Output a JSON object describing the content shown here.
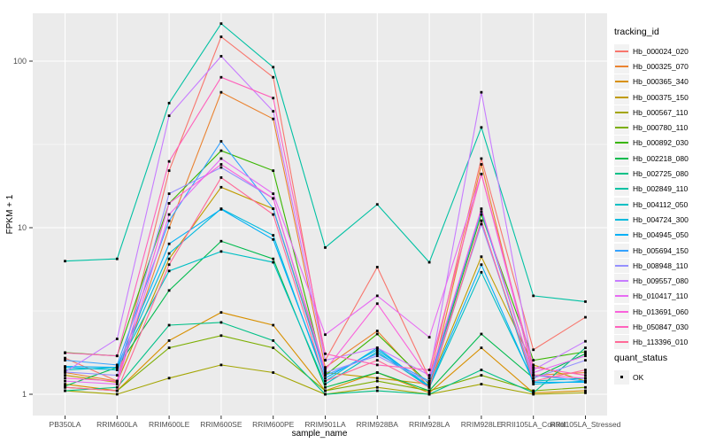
{
  "ui": {
    "background_color": "#ffffff",
    "panel_color": "#EBEBEB",
    "gridline_color": "#ffffff",
    "axis_text_color": "#4D4D4D",
    "point_color": "#000000"
  },
  "chart_data": {
    "type": "line",
    "title": "",
    "xlabel": "sample_name",
    "ylabel": "FPKM + 1",
    "y_scale": "log10",
    "ylim": [
      0.85,
      200
    ],
    "y_ticks": [
      1,
      10,
      100
    ],
    "y_tick_labels": [
      "1",
      "10",
      "100"
    ],
    "y_minor_ticks": [
      3.162,
      31.62
    ],
    "grid": "on",
    "legend_position": "right",
    "legend_title": "tracking_id",
    "point_legend": {
      "title": "quant_status",
      "label": "OK"
    },
    "categories": [
      "PB350LA",
      "RRIM600LA",
      "RRIM600LE",
      "RRIM600SE",
      "RRIM600PE",
      "RRIM901LA",
      "RRIM928BA",
      "RRIM928LA",
      "RRIM928LE",
      "RRII105LA_Control",
      "RRII105LA_Stressed"
    ],
    "series": [
      {
        "name": "Hb_000024_020",
        "color": "#F8766D",
        "values": [
          1.65,
          1.2,
          22,
          140,
          80,
          1.6,
          5.8,
          1.25,
          26,
          1.85,
          2.9
        ]
      },
      {
        "name": "Hb_000325_070",
        "color": "#EA8331",
        "values": [
          1.35,
          1.2,
          10,
          65,
          45,
          1.45,
          2.4,
          1.1,
          24,
          1.3,
          1.35
        ]
      },
      {
        "name": "Hb_000365_340",
        "color": "#D89000",
        "values": [
          1.15,
          1.05,
          2.1,
          3.1,
          2.6,
          1.05,
          1.35,
          1.02,
          1.9,
          1.02,
          1.05
        ]
      },
      {
        "name": "Hb_000375_150",
        "color": "#C09B00",
        "values": [
          1.3,
          1.18,
          6.5,
          17.5,
          13,
          1.35,
          1.25,
          1.15,
          6.7,
          1.5,
          1.2
        ]
      },
      {
        "name": "Hb_000567_110",
        "color": "#A3A500",
        "values": [
          1.05,
          1.0,
          1.25,
          1.5,
          1.35,
          1.0,
          1.1,
          1.0,
          1.15,
          1.0,
          1.02
        ]
      },
      {
        "name": "Hb_000780_110",
        "color": "#7CAE00",
        "values": [
          1.1,
          1.05,
          1.9,
          2.25,
          1.9,
          1.05,
          1.2,
          1.05,
          1.3,
          1.05,
          1.1
        ]
      },
      {
        "name": "Hb_000892_030",
        "color": "#39B600",
        "values": [
          1.78,
          1.7,
          14,
          29,
          22,
          1.3,
          2.3,
          1.15,
          12,
          1.6,
          1.8
        ]
      },
      {
        "name": "Hb_002218_080",
        "color": "#00BB4E",
        "values": [
          1.12,
          1.45,
          4.2,
          8.3,
          6.5,
          1.1,
          1.35,
          1.05,
          2.3,
          1.25,
          1.75
        ]
      },
      {
        "name": "Hb_002725_080",
        "color": "#00C087",
        "values": [
          1.05,
          1.1,
          2.6,
          2.7,
          2.1,
          1.0,
          1.05,
          1.0,
          1.4,
          1.02,
          1.9
        ]
      },
      {
        "name": "Hb_002849_110",
        "color": "#00C1A3",
        "values": [
          6.3,
          6.5,
          56,
          168,
          92,
          7.6,
          13.8,
          6.2,
          40,
          3.9,
          3.6
        ]
      },
      {
        "name": "Hb_004112_050",
        "color": "#00BFC4",
        "values": [
          1.4,
          1.45,
          5.5,
          7.2,
          6.2,
          1.15,
          1.8,
          1.1,
          5.4,
          1.2,
          1.25
        ]
      },
      {
        "name": "Hb_004724_300",
        "color": "#00BADE",
        "values": [
          1.45,
          1.4,
          7.0,
          13,
          9,
          1.2,
          1.9,
          1.1,
          11,
          1.15,
          1.2
        ]
      },
      {
        "name": "Hb_004945_050",
        "color": "#00B0F6",
        "values": [
          1.47,
          1.45,
          8.0,
          12.9,
          8.5,
          1.25,
          1.85,
          1.12,
          6.0,
          1.18,
          1.18
        ]
      },
      {
        "name": "Hb_005694_150",
        "color": "#35A2FF",
        "values": [
          1.6,
          1.5,
          11,
          33,
          13,
          1.3,
          1.75,
          1.2,
          12.5,
          1.3,
          1.2
        ]
      },
      {
        "name": "Hb_008948_110",
        "color": "#9590FF",
        "values": [
          1.36,
          1.3,
          16,
          23,
          15,
          1.35,
          1.7,
          1.18,
          10.5,
          1.25,
          1.6
        ]
      },
      {
        "name": "Hb_009557_080",
        "color": "#C77CFF",
        "values": [
          1.36,
          2.15,
          47,
          107,
          50,
          1.6,
          1.9,
          1.3,
          65,
          1.4,
          2.08
        ]
      },
      {
        "name": "Hb_010417_110",
        "color": "#E76BF3",
        "values": [
          1.2,
          1.15,
          12,
          26,
          16,
          2.28,
          3.9,
          2.2,
          21,
          1.35,
          1.7
        ]
      },
      {
        "name": "Hb_013691_060",
        "color": "#FA62DB",
        "values": [
          1.25,
          1.2,
          14,
          24,
          15,
          1.4,
          3.5,
          1.25,
          13,
          1.3,
          1.25
        ]
      },
      {
        "name": "Hb_050847_030",
        "color": "#FF62BC",
        "values": [
          1.77,
          1.7,
          25,
          80,
          60,
          1.75,
          1.5,
          1.4,
          21,
          1.45,
          1.3
        ]
      },
      {
        "name": "Hb_113396_010",
        "color": "#FF6A98",
        "values": [
          1.1,
          1.05,
          6.0,
          20,
          12,
          1.2,
          1.6,
          1.1,
          11,
          1.2,
          1.4
        ]
      }
    ]
  }
}
